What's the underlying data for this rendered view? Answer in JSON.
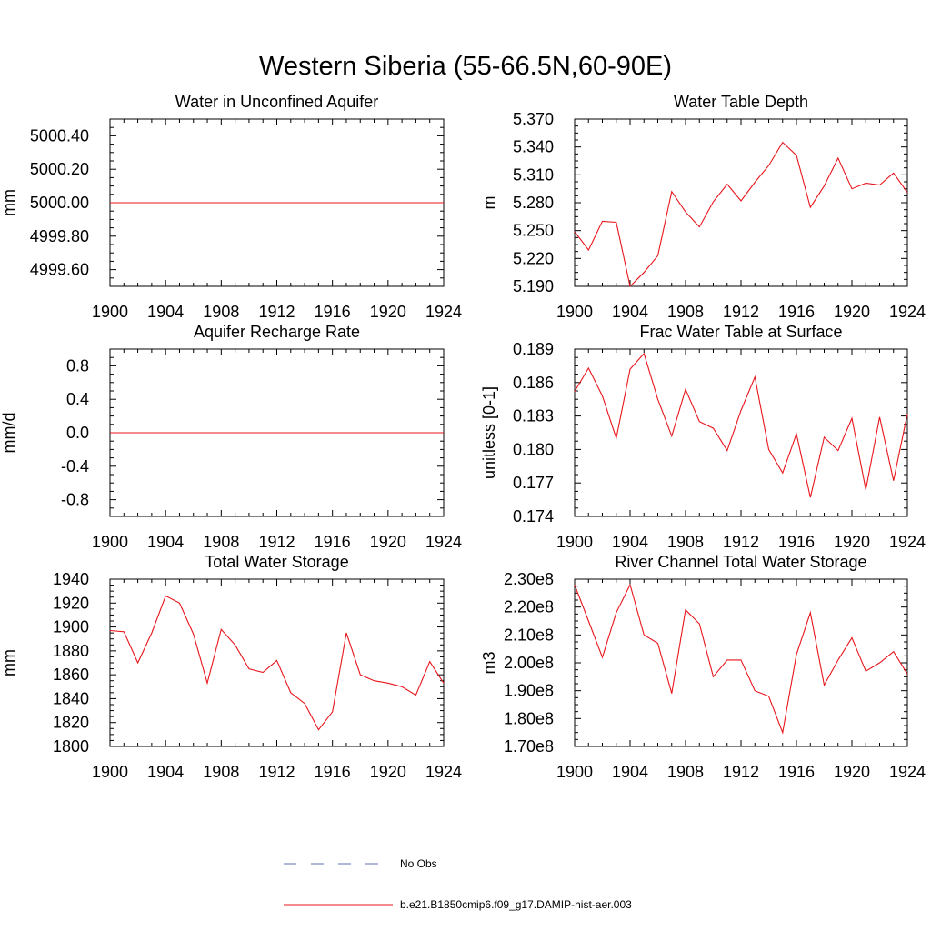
{
  "figure": {
    "title": "Western Siberia (55-66.5N,60-90E)",
    "line_color": "#e8151b",
    "obs_color": "#5a6fb4"
  },
  "legend": {
    "entries": [
      {
        "label": "No Obs",
        "style": "dashed",
        "color": "#5a6fb4"
      },
      {
        "label": "b.e21.B1850cmip6.f09_g17.DAMIP-hist-aer.003",
        "style": "solid",
        "color": "#e8151b"
      }
    ]
  },
  "chart_data": [
    {
      "type": "line",
      "title": "Water in Unconfined Aquifer",
      "xlabel": "",
      "ylabel": "mm",
      "xlim": [
        1900,
        1924
      ],
      "ylim": [
        4999.5,
        5000.5
      ],
      "xticks": [
        "1900",
        "1904",
        "1908",
        "1912",
        "1916",
        "1920",
        "1924"
      ],
      "yticks": [
        "4999.60",
        "4999.80",
        "5000.00",
        "5000.20",
        "5000.40"
      ],
      "series": [
        {
          "x": [
            1900,
            1924
          ],
          "values": [
            5000.0,
            5000.0
          ]
        }
      ]
    },
    {
      "type": "line",
      "title": "Water Table Depth",
      "xlabel": "",
      "ylabel": "m",
      "xlim": [
        1900,
        1924
      ],
      "ylim": [
        5.19,
        5.37
      ],
      "xticks": [
        "1900",
        "1904",
        "1908",
        "1912",
        "1916",
        "1920",
        "1924"
      ],
      "yticks": [
        "5.190",
        "5.220",
        "5.250",
        "5.280",
        "5.310",
        "5.340",
        "5.370"
      ],
      "series": [
        {
          "x": [
            1900,
            1901,
            1902,
            1903,
            1904,
            1905,
            1906,
            1907,
            1908,
            1909,
            1910,
            1911,
            1912,
            1913,
            1914,
            1915,
            1916,
            1917,
            1918,
            1919,
            1920,
            1921,
            1922,
            1923,
            1924
          ],
          "values": [
            5.249,
            5.229,
            5.26,
            5.259,
            5.19,
            5.205,
            5.223,
            5.292,
            5.27,
            5.254,
            5.281,
            5.3,
            5.282,
            5.302,
            5.32,
            5.345,
            5.331,
            5.275,
            5.298,
            5.328,
            5.295,
            5.301,
            5.299,
            5.312,
            5.291
          ]
        }
      ]
    },
    {
      "type": "line",
      "title": "Aquifer Recharge Rate",
      "xlabel": "",
      "ylabel": "mm/d",
      "xlim": [
        1900,
        1924
      ],
      "ylim": [
        -1.0,
        1.0
      ],
      "xticks": [
        "1900",
        "1904",
        "1908",
        "1912",
        "1916",
        "1920",
        "1924"
      ],
      "yticks": [
        "-0.8",
        "-0.4",
        "0.0",
        "0.4",
        "0.8"
      ],
      "series": [
        {
          "x": [
            1900,
            1924
          ],
          "values": [
            0.0,
            0.0
          ]
        }
      ]
    },
    {
      "type": "line",
      "title": "Frac Water Table at Surface",
      "xlabel": "",
      "ylabel": "unitless [0-1]",
      "xlim": [
        1900,
        1924
      ],
      "ylim": [
        0.174,
        0.189
      ],
      "xticks": [
        "1900",
        "1904",
        "1908",
        "1912",
        "1916",
        "1920",
        "1924"
      ],
      "yticks": [
        "0.174",
        "0.177",
        "0.180",
        "0.183",
        "0.186",
        "0.189"
      ],
      "series": [
        {
          "x": [
            1900,
            1901,
            1902,
            1903,
            1904,
            1905,
            1906,
            1907,
            1908,
            1909,
            1910,
            1911,
            1912,
            1913,
            1914,
            1915,
            1916,
            1917,
            1918,
            1919,
            1920,
            1921,
            1922,
            1923,
            1924
          ],
          "values": [
            0.1852,
            0.1873,
            0.1848,
            0.181,
            0.1872,
            0.1886,
            0.1845,
            0.1812,
            0.1854,
            0.1825,
            0.1819,
            0.1799,
            0.1835,
            0.1865,
            0.18,
            0.1779,
            0.1814,
            0.1757,
            0.1811,
            0.1799,
            0.1828,
            0.1764,
            0.1829,
            0.1772,
            0.1832
          ]
        }
      ]
    },
    {
      "type": "line",
      "title": "Total Water Storage",
      "xlabel": "",
      "ylabel": "mm",
      "xlim": [
        1900,
        1924
      ],
      "ylim": [
        1800,
        1940
      ],
      "xticks": [
        "1900",
        "1904",
        "1908",
        "1912",
        "1916",
        "1920",
        "1924"
      ],
      "yticks": [
        "1800",
        "1820",
        "1840",
        "1860",
        "1880",
        "1900",
        "1920",
        "1940"
      ],
      "series": [
        {
          "x": [
            1900,
            1901,
            1902,
            1903,
            1904,
            1905,
            1906,
            1907,
            1908,
            1909,
            1910,
            1911,
            1912,
            1913,
            1914,
            1915,
            1916,
            1917,
            1918,
            1919,
            1920,
            1921,
            1922,
            1923,
            1924
          ],
          "values": [
            1897,
            1896,
            1870,
            1895,
            1926,
            1920,
            1894,
            1853,
            1898,
            1885,
            1865,
            1862,
            1872,
            1845,
            1836,
            1814,
            1829,
            1895,
            1860,
            1855,
            1853,
            1850,
            1843,
            1871,
            1853
          ]
        }
      ]
    },
    {
      "type": "line",
      "title": "River Channel Total Water Storage",
      "xlabel": "",
      "ylabel": "m3",
      "xlim": [
        1900,
        1924
      ],
      "ylim": [
        170000000.0,
        230000000.0
      ],
      "xticks": [
        "1900",
        "1904",
        "1908",
        "1912",
        "1916",
        "1920",
        "1924"
      ],
      "yticks": [
        "1.70e8",
        "1.80e8",
        "1.90e8",
        "2.00e8",
        "2.10e8",
        "2.20e8",
        "2.30e8"
      ],
      "series": [
        {
          "x": [
            1900,
            1901,
            1902,
            1903,
            1904,
            1905,
            1906,
            1907,
            1908,
            1909,
            1910,
            1911,
            1912,
            1913,
            1914,
            1915,
            1916,
            1917,
            1918,
            1919,
            1920,
            1921,
            1922,
            1923,
            1924
          ],
          "values": [
            228000000.0,
            215000000.0,
            202000000.0,
            218000000.0,
            228000000.0,
            210000000.0,
            207000000.0,
            189000000.0,
            219000000.0,
            214000000.0,
            195000000.0,
            201000000.0,
            201000000.0,
            190000000.0,
            188000000.0,
            175000000.0,
            203000000.0,
            218000000.0,
            192000000.0,
            201000000.0,
            209000000.0,
            197000000.0,
            200000000.0,
            204000000.0,
            196000000.0
          ]
        }
      ]
    }
  ]
}
